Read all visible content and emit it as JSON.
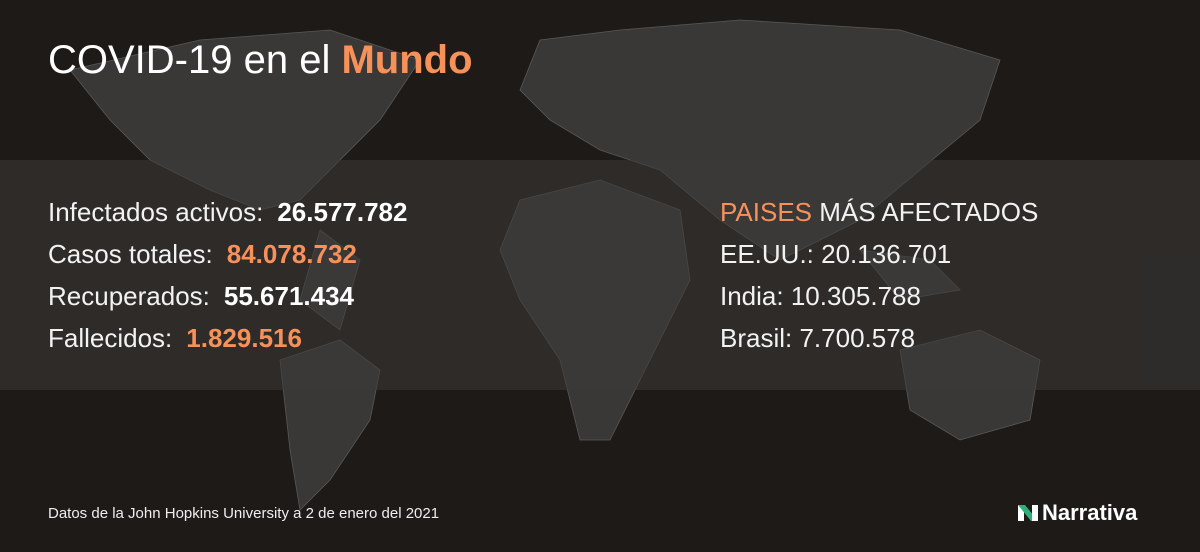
{
  "title": {
    "prefix": "COVID-19 en el",
    "highlight": "Mundo"
  },
  "stats": [
    {
      "label": "Infectados activos:",
      "value": "26.577.782",
      "color": "#ffffff"
    },
    {
      "label": "Casos totales:",
      "value": "84.078.732",
      "color": "#f7915a"
    },
    {
      "label": "Recuperados:",
      "value": "55.671.434",
      "color": "#ffffff"
    },
    {
      "label": "Fallecidos:",
      "value": "1.829.516",
      "color": "#f7915a"
    }
  ],
  "countries": {
    "heading_highlight": "PAISES",
    "heading_rest": "MÁS AFECTADOS",
    "items": [
      "EE.UU.: 20.136.701",
      "India: 10.305.788",
      "Brasil: 7.700.578"
    ]
  },
  "source": "Datos de la John Hopkins University a 2 de enero del 2021",
  "logo": {
    "text": "Narrativa",
    "accent": "#2eb07a"
  },
  "colors": {
    "accent": "#f7915a",
    "background": "#1d1a18"
  }
}
